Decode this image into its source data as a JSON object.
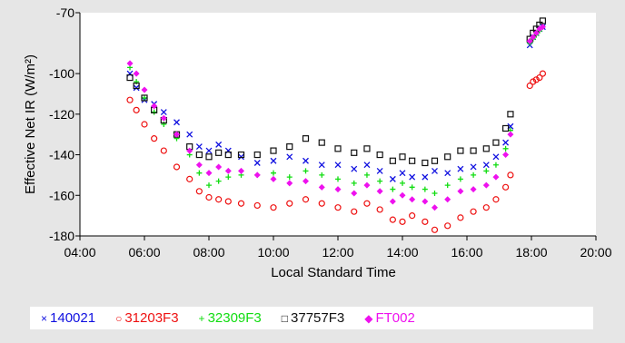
{
  "chart_data": {
    "type": "scatter",
    "title": "",
    "xlabel": "Local Standard Time",
    "ylabel": "Effective Net IR (W/m²)",
    "xlim": [
      4,
      20
    ],
    "ylim": [
      -180,
      -70
    ],
    "x_ticks": [
      {
        "value": 4,
        "label": "04:00"
      },
      {
        "value": 6,
        "label": "06:00"
      },
      {
        "value": 8,
        "label": "08:00"
      },
      {
        "value": 10,
        "label": "10:00"
      },
      {
        "value": 12,
        "label": "12:00"
      },
      {
        "value": 14,
        "label": "14:00"
      },
      {
        "value": 16,
        "label": "16:00"
      },
      {
        "value": 18,
        "label": "18:00"
      },
      {
        "value": 20,
        "label": "20:00"
      }
    ],
    "y_ticks": [
      {
        "value": -70,
        "label": "-70"
      },
      {
        "value": -100,
        "label": "-100"
      },
      {
        "value": -120,
        "label": "-120"
      },
      {
        "value": -140,
        "label": "-140"
      },
      {
        "value": -160,
        "label": "-160"
      },
      {
        "value": -180,
        "label": "-180"
      }
    ],
    "grid": false,
    "legend_position": "bottom",
    "series": [
      {
        "name": "140021",
        "marker": "×",
        "color": "#1010e0",
        "x": [
          5.55,
          5.75,
          6.0,
          6.3,
          6.6,
          7.0,
          7.4,
          7.7,
          8.0,
          8.3,
          8.6,
          9.0,
          9.5,
          10.0,
          10.5,
          11.0,
          11.5,
          12.0,
          12.5,
          12.9,
          13.3,
          13.7,
          14.0,
          14.3,
          14.7,
          15.0,
          15.4,
          15.8,
          16.2,
          16.6,
          16.9,
          17.2,
          17.35,
          17.95,
          18.05,
          18.15,
          18.25,
          18.35
        ],
        "y": [
          -100,
          -107,
          -113,
          -115,
          -119,
          -124,
          -130,
          -136,
          -138,
          -135,
          -138,
          -141,
          -144,
          -143,
          -141,
          -143,
          -145,
          -145,
          -147,
          -145,
          -148,
          -152,
          -149,
          -151,
          -151,
          -148,
          -149,
          -147,
          -146,
          -145,
          -141,
          -134,
          -126,
          -86,
          -82,
          -80,
          -78,
          -77
        ]
      },
      {
        "name": "31203F3",
        "marker": "○",
        "color": "#ee1111",
        "x": [
          5.55,
          5.75,
          6.0,
          6.3,
          6.6,
          7.0,
          7.4,
          7.7,
          8.0,
          8.3,
          8.6,
          9.0,
          9.5,
          10.0,
          10.5,
          11.0,
          11.5,
          12.0,
          12.5,
          12.9,
          13.3,
          13.7,
          14.0,
          14.3,
          14.7,
          15.0,
          15.4,
          15.8,
          16.2,
          16.6,
          16.9,
          17.2,
          17.35,
          17.95,
          18.05,
          18.15,
          18.25,
          18.35
        ],
        "y": [
          -113,
          -118,
          -125,
          -132,
          -138,
          -146,
          -152,
          -158,
          -161,
          -162,
          -163,
          -164,
          -165,
          -166,
          -164,
          -162,
          -164,
          -166,
          -168,
          -164,
          -167,
          -172,
          -173,
          -170,
          -173,
          -177,
          -175,
          -171,
          -168,
          -166,
          -162,
          -156,
          -150,
          -106,
          -104,
          -103,
          -102,
          -100
        ]
      },
      {
        "name": "32309F3",
        "marker": "+",
        "color": "#11dd11",
        "x": [
          5.55,
          5.75,
          6.0,
          6.3,
          6.6,
          7.0,
          7.4,
          7.7,
          8.0,
          8.3,
          8.6,
          9.0,
          9.5,
          10.0,
          10.5,
          11.0,
          11.5,
          12.0,
          12.5,
          12.9,
          13.3,
          13.7,
          14.0,
          14.3,
          14.7,
          15.0,
          15.4,
          15.8,
          16.2,
          16.6,
          16.9,
          17.2,
          17.35,
          17.95,
          18.05,
          18.15,
          18.25,
          18.35
        ],
        "y": [
          -97,
          -104,
          -112,
          -119,
          -125,
          -132,
          -140,
          -149,
          -155,
          -153,
          -151,
          -150,
          -150,
          -149,
          -151,
          -148,
          -150,
          -152,
          -154,
          -150,
          -153,
          -157,
          -154,
          -156,
          -157,
          -159,
          -155,
          -152,
          -150,
          -148,
          -145,
          -137,
          -128,
          -85,
          -83,
          -81,
          -79,
          -77
        ]
      },
      {
        "name": "37757F3",
        "marker": "□",
        "color": "#111111",
        "x": [
          5.55,
          5.75,
          6.0,
          6.3,
          6.6,
          7.0,
          7.4,
          7.7,
          8.0,
          8.3,
          8.6,
          9.0,
          9.5,
          10.0,
          10.5,
          11.0,
          11.5,
          12.0,
          12.5,
          12.9,
          13.3,
          13.7,
          14.0,
          14.3,
          14.7,
          15.0,
          15.4,
          15.8,
          16.2,
          16.6,
          16.9,
          17.2,
          17.35,
          17.95,
          18.05,
          18.15,
          18.25,
          18.35
        ],
        "y": [
          -102,
          -106,
          -112,
          -118,
          -123,
          -130,
          -136,
          -140,
          -141,
          -139,
          -140,
          -140,
          -140,
          -138,
          -136,
          -132,
          -134,
          -137,
          -139,
          -137,
          -140,
          -143,
          -141,
          -143,
          -144,
          -143,
          -141,
          -138,
          -138,
          -137,
          -134,
          -127,
          -120,
          -83,
          -80,
          -78,
          -76,
          -74
        ]
      },
      {
        "name": "FT002",
        "marker": "◆",
        "color": "#ee11ee",
        "x": [
          5.55,
          5.75,
          6.0,
          6.3,
          6.6,
          7.0,
          7.4,
          7.7,
          8.0,
          8.3,
          8.6,
          9.0,
          9.5,
          10.0,
          10.5,
          11.0,
          11.5,
          12.0,
          12.5,
          12.9,
          13.3,
          13.7,
          14.0,
          14.3,
          14.7,
          15.0,
          15.4,
          15.8,
          16.2,
          16.6,
          16.9,
          17.2,
          17.35,
          17.95,
          18.05,
          18.15,
          18.25,
          18.35
        ],
        "y": [
          -95,
          -100,
          -108,
          -116,
          -122,
          -130,
          -138,
          -145,
          -149,
          -146,
          -148,
          -148,
          -150,
          -152,
          -154,
          -153,
          -156,
          -157,
          -159,
          -155,
          -158,
          -163,
          -160,
          -162,
          -163,
          -166,
          -162,
          -158,
          -157,
          -155,
          -151,
          -140,
          -130,
          -84,
          -82,
          -80,
          -78,
          -77
        ]
      }
    ]
  }
}
